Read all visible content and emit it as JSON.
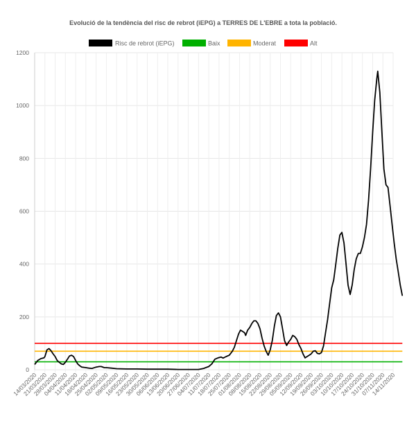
{
  "chart_data": {
    "type": "line",
    "title": "Evolució de la tendència del risc de rebrot (iEPG) a TERRES DE L'EBRE a tota la població.",
    "xlabel": "",
    "ylabel": "",
    "ylim": [
      0,
      1200
    ],
    "yticks": [
      0,
      200,
      400,
      600,
      800,
      1000,
      1200
    ],
    "grid": true,
    "legend_position": "top",
    "x_tick_labels": [
      "14/03/2020",
      "21/03/2020",
      "28/03/2020",
      "04/04/2020",
      "11/04/2020",
      "18/04/2020",
      "25/04/2020",
      "02/05/2020",
      "09/05/2020",
      "16/05/2020",
      "23/05/2020",
      "30/05/2020",
      "06/06/2020",
      "13/06/2020",
      "20/06/2020",
      "27/06/2020",
      "04/07/2020",
      "11/07/2020",
      "18/07/2020",
      "25/07/2020",
      "01/08/2020",
      "08/08/2020",
      "15/08/2020",
      "22/08/2020",
      "29/08/2020",
      "05/09/2020",
      "12/09/2020",
      "19/09/2020",
      "26/09/2020",
      "03/10/2020",
      "10/10/2020",
      "17/10/2020",
      "24/10/2020",
      "31/10/2020",
      "07/11/2020",
      "14/11/2020"
    ],
    "series": [
      {
        "name": "Risc de rebrot (iEPG)",
        "color": "#000000",
        "values": [
          [
            0,
            20
          ],
          [
            0.3,
            35
          ],
          [
            0.6,
            42
          ],
          [
            0.9,
            45
          ],
          [
            1.0,
            50
          ],
          [
            1.2,
            75
          ],
          [
            1.4,
            80
          ],
          [
            1.6,
            72
          ],
          [
            1.8,
            60
          ],
          [
            2.0,
            50
          ],
          [
            2.2,
            35
          ],
          [
            2.4,
            28
          ],
          [
            2.6,
            22
          ],
          [
            2.8,
            20
          ],
          [
            3.0,
            28
          ],
          [
            3.2,
            40
          ],
          [
            3.4,
            52
          ],
          [
            3.6,
            55
          ],
          [
            3.8,
            50
          ],
          [
            4.0,
            35
          ],
          [
            4.2,
            22
          ],
          [
            4.4,
            15
          ],
          [
            4.6,
            10
          ],
          [
            5.0,
            8
          ],
          [
            5.3,
            6
          ],
          [
            5.6,
            5
          ],
          [
            6.0,
            10
          ],
          [
            6.3,
            12
          ],
          [
            6.5,
            12
          ],
          [
            6.8,
            8
          ],
          [
            7.0,
            8
          ],
          [
            7.5,
            6
          ],
          [
            8,
            4
          ],
          [
            9,
            3
          ],
          [
            10,
            3
          ],
          [
            11,
            2
          ],
          [
            12,
            2
          ],
          [
            13,
            2
          ],
          [
            14,
            1
          ],
          [
            15,
            1
          ],
          [
            16,
            1
          ],
          [
            16.5,
            5
          ],
          [
            17,
            12
          ],
          [
            17.3,
            22
          ],
          [
            17.6,
            40
          ],
          [
            17.9,
            45
          ],
          [
            18.2,
            48
          ],
          [
            18.4,
            44
          ],
          [
            18.7,
            50
          ],
          [
            19.0,
            55
          ],
          [
            19.3,
            70
          ],
          [
            19.5,
            85
          ],
          [
            19.7,
            110
          ],
          [
            19.9,
            135
          ],
          [
            20.1,
            150
          ],
          [
            20.3,
            145
          ],
          [
            20.5,
            140
          ],
          [
            20.6,
            130
          ],
          [
            20.8,
            150
          ],
          [
            21.0,
            160
          ],
          [
            21.2,
            175
          ],
          [
            21.4,
            185
          ],
          [
            21.6,
            185
          ],
          [
            21.8,
            175
          ],
          [
            22.0,
            155
          ],
          [
            22.2,
            120
          ],
          [
            22.4,
            90
          ],
          [
            22.6,
            70
          ],
          [
            22.8,
            55
          ],
          [
            23.0,
            75
          ],
          [
            23.2,
            110
          ],
          [
            23.4,
            165
          ],
          [
            23.6,
            205
          ],
          [
            23.8,
            215
          ],
          [
            24.0,
            200
          ],
          [
            24.2,
            155
          ],
          [
            24.4,
            110
          ],
          [
            24.6,
            92
          ],
          [
            24.8,
            105
          ],
          [
            25.0,
            115
          ],
          [
            25.2,
            130
          ],
          [
            25.4,
            125
          ],
          [
            25.6,
            115
          ],
          [
            25.8,
            95
          ],
          [
            26.0,
            80
          ],
          [
            26.2,
            60
          ],
          [
            26.4,
            45
          ],
          [
            26.6,
            50
          ],
          [
            26.8,
            55
          ],
          [
            27.0,
            60
          ],
          [
            27.2,
            70
          ],
          [
            27.4,
            72
          ],
          [
            27.6,
            62
          ],
          [
            27.8,
            60
          ],
          [
            28.0,
            65
          ],
          [
            28.2,
            90
          ],
          [
            28.4,
            140
          ],
          [
            28.6,
            190
          ],
          [
            28.8,
            250
          ],
          [
            29.0,
            310
          ],
          [
            29.2,
            340
          ],
          [
            29.4,
            400
          ],
          [
            29.6,
            460
          ],
          [
            29.8,
            510
          ],
          [
            30.0,
            520
          ],
          [
            30.2,
            480
          ],
          [
            30.4,
            400
          ],
          [
            30.6,
            320
          ],
          [
            30.8,
            285
          ],
          [
            31.0,
            320
          ],
          [
            31.2,
            380
          ],
          [
            31.4,
            420
          ],
          [
            31.6,
            440
          ],
          [
            31.8,
            440
          ],
          [
            32.0,
            465
          ],
          [
            32.2,
            500
          ],
          [
            32.4,
            550
          ],
          [
            32.6,
            640
          ],
          [
            32.8,
            760
          ],
          [
            33.0,
            900
          ],
          [
            33.2,
            1020
          ],
          [
            33.4,
            1100
          ],
          [
            33.5,
            1130
          ],
          [
            33.7,
            1050
          ],
          [
            33.9,
            900
          ],
          [
            34.1,
            760
          ],
          [
            34.3,
            700
          ],
          [
            34.5,
            690
          ],
          [
            34.7,
            620
          ],
          [
            34.9,
            550
          ],
          [
            35.1,
            480
          ],
          [
            35.3,
            420
          ],
          [
            35.5,
            370
          ],
          [
            35.7,
            320
          ],
          [
            35.9,
            280
          ]
        ]
      },
      {
        "name": "Baix",
        "color": "#00b000",
        "values": [
          [
            0,
            30
          ],
          [
            35.9,
            30
          ]
        ]
      },
      {
        "name": "Moderat",
        "color": "#ffb400",
        "values": [
          [
            0,
            70
          ],
          [
            35.9,
            70
          ]
        ]
      },
      {
        "name": "Alt",
        "color": "#ff0000",
        "values": [
          [
            0,
            100
          ],
          [
            35.9,
            100
          ]
        ]
      }
    ]
  }
}
